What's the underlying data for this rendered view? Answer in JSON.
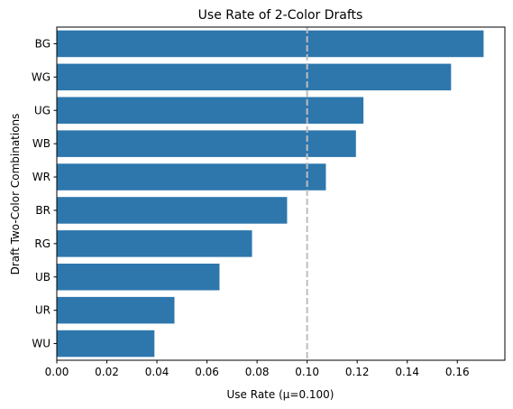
{
  "chart_data": {
    "type": "bar",
    "orientation": "horizontal",
    "title": "Use Rate of 2-Color Drafts",
    "xlabel": "Use Rate (μ=0.100)",
    "ylabel": "Draft Two-Color Combinations",
    "categories": [
      "BG",
      "WG",
      "UG",
      "WB",
      "WR",
      "BR",
      "RG",
      "UB",
      "UR",
      "WU"
    ],
    "values": [
      0.1705,
      0.1575,
      0.1225,
      0.1195,
      0.1075,
      0.092,
      0.078,
      0.065,
      0.047,
      0.039
    ],
    "xlim": [
      0,
      0.179
    ],
    "x_ticks": [
      "0.00",
      "0.02",
      "0.04",
      "0.06",
      "0.08",
      "0.10",
      "0.12",
      "0.14",
      "0.16"
    ],
    "mean_line": 0.1,
    "grid": false,
    "colors": {
      "bar": "#2e77ad",
      "mean_line": "#bdbdbd",
      "axis": "#000000"
    }
  }
}
